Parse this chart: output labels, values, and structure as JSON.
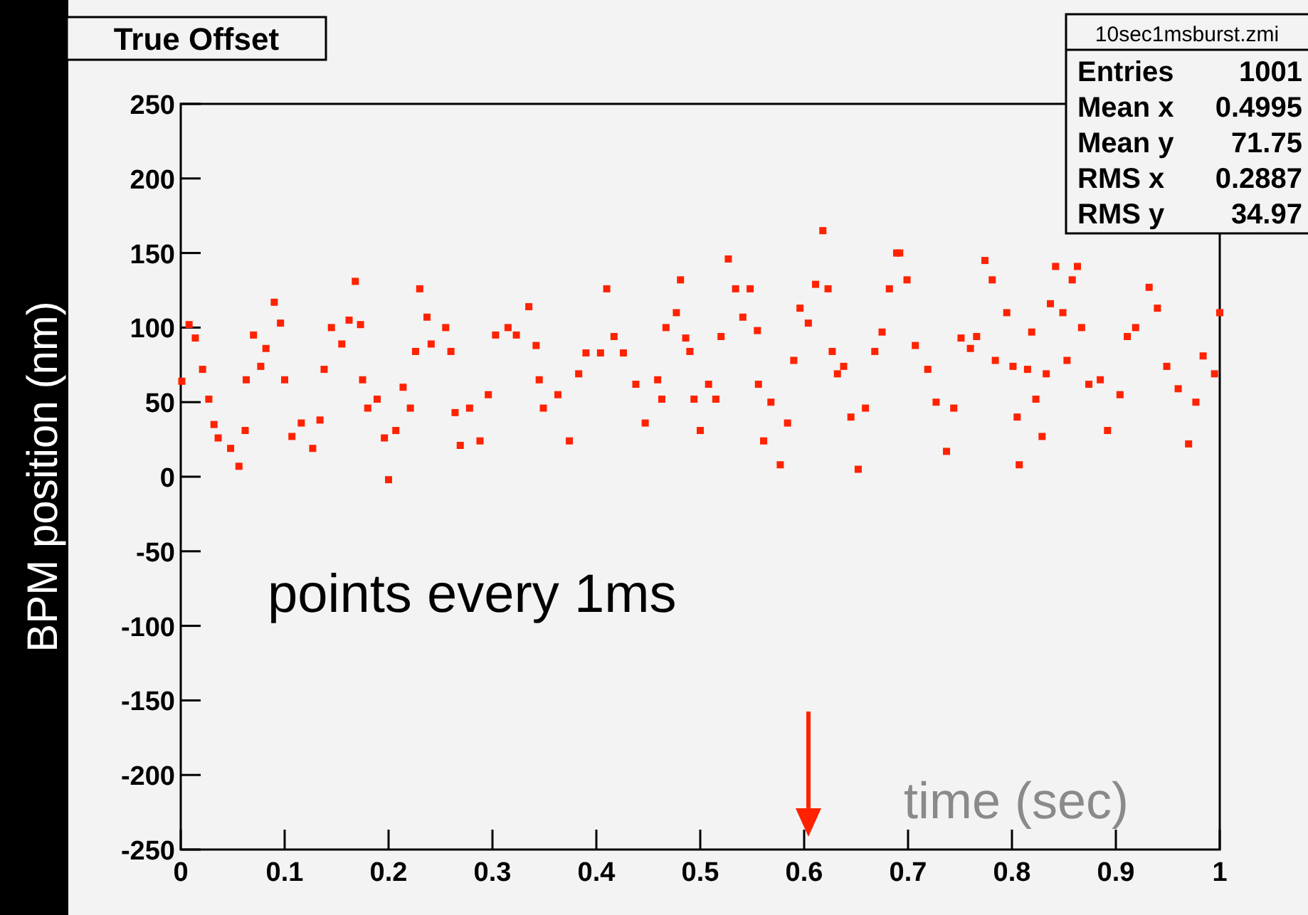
{
  "chart_data": {
    "type": "scatter",
    "title": "True Offset",
    "xlabel": "time (sec)",
    "ylabel": "BPM position (nm)",
    "annotations": [
      "points every 1ms",
      "10sec1msburst.zmi",
      "Entries 1001",
      "Mean x 0.4995",
      "Mean y 71.75",
      "RMS x 0.2887",
      "RMS y 34.97"
    ],
    "marker": "square",
    "grid": false,
    "xlim": [
      0,
      1
    ],
    "xticks": [
      0,
      0.1,
      0.2,
      0.3,
      0.4,
      0.5,
      0.6,
      0.7,
      0.8,
      0.9,
      1
    ],
    "ylim": [
      -250,
      250
    ],
    "yticks": [
      -250,
      -200,
      -150,
      -100,
      -50,
      0,
      50,
      100,
      150,
      200,
      250
    ],
    "series": [
      {
        "color": "#ff2200",
        "x": [
          0.001,
          0.008,
          0.014,
          0.021,
          0.027,
          0.032,
          0.036,
          0.048,
          0.056,
          0.062,
          0.063,
          0.07,
          0.077,
          0.082,
          0.09,
          0.096,
          0.1,
          0.107,
          0.116,
          0.127,
          0.134,
          0.138,
          0.145,
          0.155,
          0.162,
          0.168,
          0.173,
          0.175,
          0.18,
          0.189,
          0.196,
          0.2,
          0.207,
          0.214,
          0.221,
          0.226,
          0.23,
          0.237,
          0.241,
          0.255,
          0.26,
          0.264,
          0.269,
          0.278,
          0.288,
          0.296,
          0.303,
          0.315,
          0.323,
          0.335,
          0.342,
          0.345,
          0.349,
          0.363,
          0.374,
          0.383,
          0.39,
          0.404,
          0.41,
          0.417,
          0.426,
          0.438,
          0.447,
          0.459,
          0.463,
          0.467,
          0.477,
          0.481,
          0.486,
          0.49,
          0.494,
          0.5,
          0.508,
          0.515,
          0.52,
          0.527,
          0.534,
          0.541,
          0.548,
          0.555,
          0.556,
          0.561,
          0.568,
          0.577,
          0.584,
          0.59,
          0.596,
          0.604,
          0.611,
          0.618,
          0.623,
          0.627,
          0.632,
          0.638,
          0.645,
          0.652,
          0.659,
          0.668,
          0.675,
          0.682,
          0.689,
          0.692,
          0.699,
          0.707,
          0.719,
          0.727,
          0.737,
          0.744,
          0.751,
          0.76,
          0.766,
          0.774,
          0.781,
          0.784,
          0.795,
          0.801,
          0.805,
          0.807,
          0.815,
          0.819,
          0.823,
          0.829,
          0.833,
          0.837,
          0.842,
          0.849,
          0.853,
          0.858,
          0.863,
          0.867,
          0.874,
          0.885,
          0.892,
          0.904,
          0.911,
          0.919,
          0.932,
          0.94,
          0.949,
          0.96,
          0.97,
          0.977,
          0.984,
          0.995,
          1.0
        ],
        "values": [
          64,
          102,
          93,
          72,
          52,
          35,
          26,
          19,
          7,
          31,
          65,
          95,
          74,
          86,
          117,
          103,
          65,
          27,
          36,
          19,
          38,
          72,
          100,
          89,
          105,
          131,
          102,
          65,
          46,
          52,
          26,
          -2,
          31,
          60,
          46,
          84,
          126,
          107,
          89,
          100,
          84,
          43,
          21,
          46,
          24,
          55,
          95,
          100,
          95,
          114,
          88,
          65,
          46,
          55,
          24,
          69,
          83,
          83,
          126,
          94,
          83,
          62,
          36,
          65,
          52,
          100,
          110,
          132,
          93,
          84,
          52,
          31,
          62,
          52,
          94,
          146,
          126,
          107,
          126,
          98,
          62,
          24,
          50,
          8,
          36,
          78,
          113,
          103,
          129,
          165,
          126,
          84,
          69,
          74,
          40,
          5,
          46,
          84,
          97,
          126,
          150,
          150,
          132,
          88,
          72,
          50,
          17,
          46,
          93,
          86,
          94,
          145,
          132,
          78,
          110,
          74,
          40,
          8,
          72,
          97,
          52,
          27,
          69,
          116,
          141,
          110,
          78,
          132,
          141,
          100,
          62,
          65,
          31,
          55,
          94,
          100,
          127,
          113,
          74,
          59,
          22,
          50,
          81,
          69,
          110
        ]
      }
    ]
  }
}
